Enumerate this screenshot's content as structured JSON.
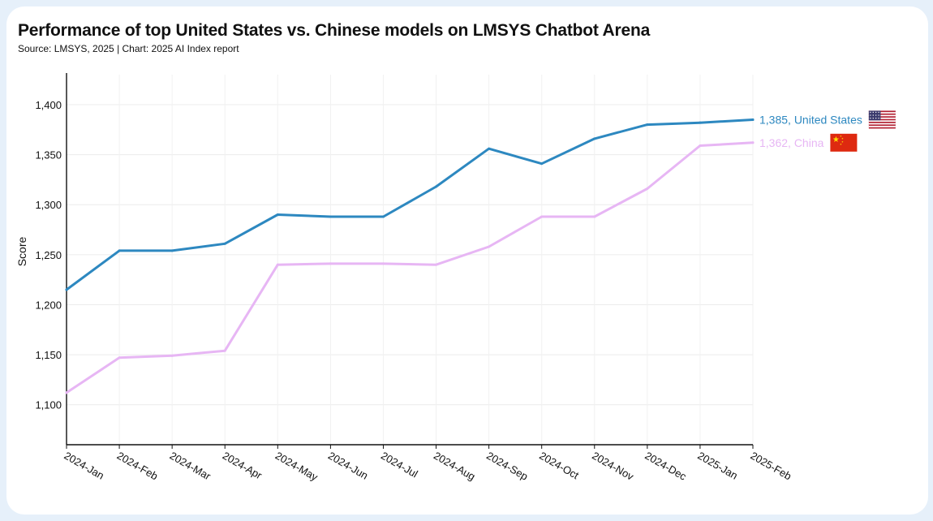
{
  "page": {
    "title": "Performance of top United States vs. Chinese models on LMSYS Chatbot Arena",
    "subtitle": "Source: LMSYS, 2025 | Chart: 2025 AI Index report"
  },
  "chart_data": {
    "type": "line",
    "title": "Performance of top United States vs. Chinese models on LMSYS Chatbot Arena",
    "subtitle": "Source: LMSYS, 2025 | Chart: 2025 AI Index report",
    "xlabel": "",
    "ylabel": "Score",
    "ylim": [
      1060,
      1430
    ],
    "yticks": [
      1100,
      1150,
      1200,
      1250,
      1300,
      1350,
      1400
    ],
    "ytick_labels": [
      "1,100",
      "1,150",
      "1,200",
      "1,250",
      "1,300",
      "1,350",
      "1,400"
    ],
    "grid": true,
    "legend": "none (end-of-line labels)",
    "categories": [
      "2024-Jan",
      "2024-Feb",
      "2024-Mar",
      "2024-Apr",
      "2024-May",
      "2024-Jun",
      "2024-Jul",
      "2024-Aug",
      "2024-Sep",
      "2024-Oct",
      "2024-Nov",
      "2024-Dec",
      "2025-Jan",
      "2025-Feb"
    ],
    "series": [
      {
        "name": "United States",
        "color": "#2d88c0",
        "end_label": "1,385, United States",
        "flag": "us-flag-icon",
        "values": [
          1215,
          1254,
          1254,
          1261,
          1290,
          1288,
          1288,
          1318,
          1356,
          1341,
          1366,
          1380,
          1382,
          1385
        ]
      },
      {
        "name": "China",
        "color": "#e7b6f4",
        "end_label": "1,362, China",
        "flag": "china-flag-icon",
        "values": [
          1112,
          1147,
          1149,
          1154,
          1240,
          1241,
          1241,
          1240,
          1258,
          1288,
          1288,
          1316,
          1359,
          1362
        ]
      }
    ]
  }
}
